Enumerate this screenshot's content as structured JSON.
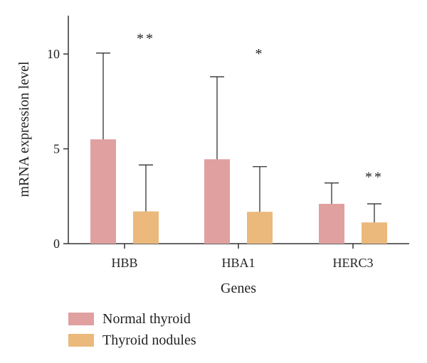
{
  "chart_data": {
    "type": "bar",
    "title": "",
    "xlabel": "Genes",
    "ylabel": "mRNA expression level",
    "ylim": [
      0,
      12
    ],
    "yticks": [
      0,
      5,
      10
    ],
    "categories": [
      "HBB",
      "HBA1",
      "HERC3"
    ],
    "series": [
      {
        "name": "Normal thyroid",
        "color": "#e0a0a0",
        "values": [
          5.5,
          4.45,
          2.1
        ],
        "error": [
          4.55,
          4.35,
          1.1
        ]
      },
      {
        "name": "Thyroid nodules",
        "color": "#ebb97c",
        "values": [
          1.7,
          1.68,
          1.12
        ],
        "error": [
          2.45,
          2.38,
          0.98
        ]
      }
    ],
    "annotations": [
      "**",
      "*",
      "**"
    ],
    "grid": false,
    "legend_position": "bottom-left"
  }
}
